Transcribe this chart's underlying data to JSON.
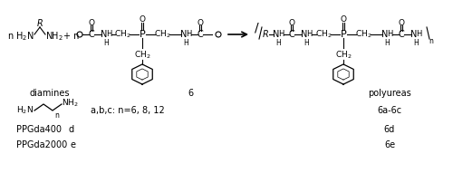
{
  "background_color": "#ffffff",
  "figsize": [
    5.0,
    1.91
  ],
  "dpi": 100,
  "diamine_label": "diamines",
  "monomer_label": "6",
  "product_label": "polyureas",
  "row1_desc": "a,b,c: n=6, 8, 12",
  "row1_product": "6a-6c",
  "row2_label": "PPGda400",
  "row2_letter": "d",
  "row2_product": "6d",
  "row3_label": "PPGda2000",
  "row3_letter": "e",
  "row3_product": "6e"
}
